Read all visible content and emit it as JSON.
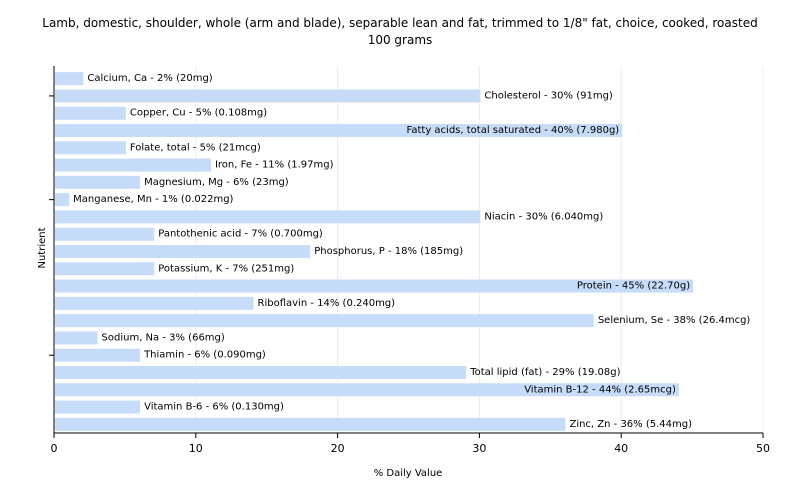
{
  "chart_data": {
    "type": "bar",
    "orientation": "horizontal",
    "title": "Lamb, domestic, shoulder, whole (arm and blade), separable lean and fat, trimmed to 1/8\" fat, choice, cooked, roasted",
    "subtitle": "100 grams",
    "xlabel": "% Daily Value",
    "ylabel": "Nutrient",
    "xlim": [
      0,
      50
    ],
    "xticks": [
      0,
      10,
      20,
      30,
      40,
      50
    ],
    "grid": true,
    "bar_color": "#c6dcf8",
    "categories": [
      "Calcium, Ca",
      "Cholesterol",
      "Copper, Cu",
      "Fatty acids, total saturated",
      "Folate, total",
      "Iron, Fe",
      "Magnesium, Mg",
      "Manganese, Mn",
      "Niacin",
      "Pantothenic acid",
      "Phosphorus, P",
      "Potassium, K",
      "Protein",
      "Riboflavin",
      "Selenium, Se",
      "Sodium, Na",
      "Thiamin",
      "Total lipid (fat)",
      "Vitamin B-12",
      "Vitamin B-6",
      "Zinc, Zn"
    ],
    "values": [
      2,
      30,
      5,
      40,
      5,
      11,
      6,
      1,
      30,
      7,
      18,
      7,
      45,
      14,
      38,
      3,
      6,
      29,
      44,
      6,
      36
    ],
    "labels": [
      "Calcium, Ca - 2% (20mg)",
      "Cholesterol - 30% (91mg)",
      "Copper, Cu - 5% (0.108mg)",
      "Fatty acids, total saturated - 40% (7.980g)",
      "Folate, total - 5% (21mcg)",
      "Iron, Fe - 11% (1.97mg)",
      "Magnesium, Mg - 6% (23mg)",
      "Manganese, Mn - 1% (0.022mg)",
      "Niacin - 30% (6.040mg)",
      "Pantothenic acid - 7% (0.700mg)",
      "Phosphorus, P - 18% (185mg)",
      "Potassium, K - 7% (251mg)",
      "Protein - 45% (22.70g)",
      "Riboflavin - 14% (0.240mg)",
      "Selenium, Se - 38% (26.4mcg)",
      "Sodium, Na - 3% (66mg)",
      "Thiamin - 6% (0.090mg)",
      "Total lipid (fat) - 29% (19.08g)",
      "Vitamin B-12 - 44% (2.65mcg)",
      "Vitamin B-6 - 6% (0.130mg)",
      "Zinc, Zn - 36% (5.44mg)"
    ]
  }
}
